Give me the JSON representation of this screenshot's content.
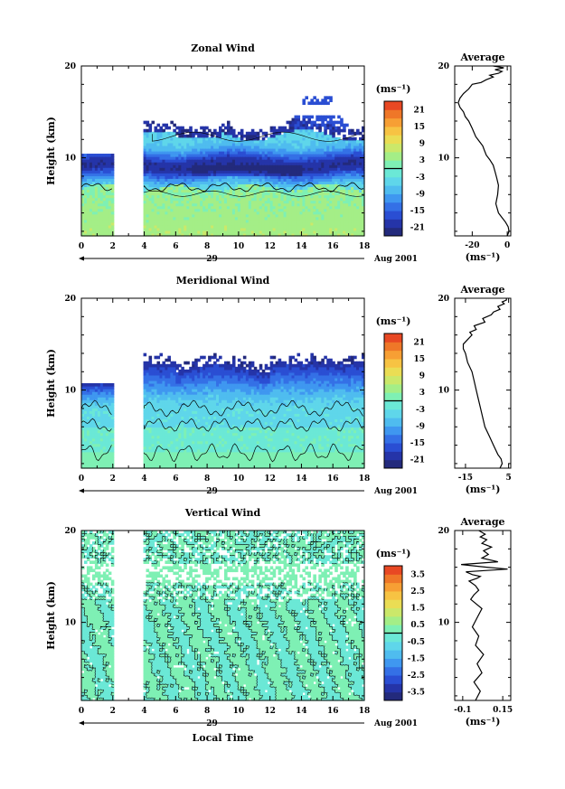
{
  "chart_data": [
    {
      "type": "heatmap",
      "title": "Zonal Wind",
      "ylabel": "Height (km)",
      "xlim": [
        0,
        18
      ],
      "ylim": [
        1.5,
        20
      ],
      "xticks": [
        0,
        2,
        4,
        6,
        8,
        10,
        12,
        14,
        16,
        18
      ],
      "yticks": [
        10,
        20
      ],
      "day_label": "29",
      "date_label": "Aug 2001",
      "colorbar": {
        "unit": "(ms⁻¹)",
        "min": -24,
        "max": 24,
        "ticks": [
          -21,
          -15,
          -9,
          -3,
          3,
          9,
          15,
          21
        ],
        "colors": [
          "#232a7c",
          "#2534a8",
          "#2a4ed3",
          "#3470e6",
          "#3f97f0",
          "#4fbcef",
          "#5fd6ea",
          "#6be8d6",
          "#7ef0b4",
          "#a4ee87",
          "#cbe86a",
          "#eadd54",
          "#f7c343",
          "#f79f34",
          "#ef7728",
          "#e84823"
        ]
      },
      "missing_x": [
        [
          2,
          4
        ]
      ],
      "features": {
        "zero_height_km": 6.8,
        "jet_height_km": 9.2,
        "jet_max_ms": -21,
        "top_km": 13
      }
    },
    {
      "type": "heatmap",
      "title": "Meridional Wind",
      "ylabel": "Height (km)",
      "xlim": [
        0,
        18
      ],
      "ylim": [
        1.5,
        20
      ],
      "xticks": [
        0,
        2,
        4,
        6,
        8,
        10,
        12,
        14,
        16,
        18
      ],
      "yticks": [
        10,
        20
      ],
      "day_label": "29",
      "date_label": "Aug 2001",
      "colorbar": {
        "unit": "(ms⁻¹)",
        "min": -24,
        "max": 24,
        "ticks": [
          -21,
          -15,
          -9,
          -3,
          3,
          9,
          15,
          21
        ],
        "colors": [
          "#232a7c",
          "#2534a8",
          "#2a4ed3",
          "#3470e6",
          "#3f97f0",
          "#4fbcef",
          "#5fd6ea",
          "#6be8d6",
          "#7ef0b4",
          "#a4ee87",
          "#cbe86a",
          "#eadd54",
          "#f7c343",
          "#f79f34",
          "#ef7728",
          "#e84823"
        ]
      },
      "missing_x": [
        [
          2,
          4
        ]
      ],
      "features": {
        "jet_height_km": 11.5,
        "jet_max_ms": -21,
        "top_km": 13
      }
    },
    {
      "type": "heatmap",
      "title": "Vertical Wind",
      "ylabel": "Height (km)",
      "xlabel": "Local Time",
      "xlim": [
        0,
        18
      ],
      "ylim": [
        1.5,
        20
      ],
      "xticks": [
        0,
        2,
        4,
        6,
        8,
        10,
        12,
        14,
        16,
        18
      ],
      "yticks": [
        10,
        20
      ],
      "day_label": "29",
      "date_label": "Aug 2001",
      "colorbar": {
        "unit": "(ms⁻¹)",
        "min": -4,
        "max": 4,
        "ticks": [
          -3.5,
          -2.5,
          -1.5,
          -0.5,
          0.5,
          1.5,
          2.5,
          3.5
        ],
        "colors": [
          "#232a7c",
          "#2534a8",
          "#2a4ed3",
          "#3470e6",
          "#3f97f0",
          "#4fbcef",
          "#5fd6ea",
          "#6be8d6",
          "#7ef0b4",
          "#a4ee87",
          "#cbe86a",
          "#eadd54",
          "#f7c343",
          "#f79f34",
          "#ef7728",
          "#e84823"
        ]
      },
      "missing_x": [
        [
          2,
          4
        ]
      ]
    },
    {
      "type": "line",
      "title": "Average",
      "xlabel": "(ms⁻¹)",
      "xlim": [
        -30,
        2
      ],
      "ylim": [
        1.5,
        20
      ],
      "xticks": [
        -20,
        0
      ],
      "yticks": [
        10,
        20
      ],
      "series": [
        {
          "x": [
            0,
            1,
            0.5,
            -1,
            -3,
            -5,
            -6.5,
            -5.5,
            -5,
            -6,
            -7,
            -8,
            -10,
            -12,
            -13,
            -14,
            -16,
            -18,
            -20,
            -22,
            -24,
            -25,
            -27,
            -28,
            -27,
            -25,
            -22,
            -20,
            -15,
            -12,
            -8,
            -10,
            -5,
            -3,
            -7,
            -2,
            -8
          ],
          "y": [
            1.5,
            2,
            2.5,
            3,
            3.5,
            4,
            5,
            6,
            7,
            7.8,
            8.5,
            9.2,
            9.8,
            10.3,
            10.8,
            11.3,
            11.8,
            12.3,
            13.2,
            14,
            14.5,
            15,
            15.5,
            16,
            16.5,
            17,
            17.5,
            18,
            18.2,
            18.5,
            18.8,
            19,
            19.2,
            19.4,
            19.6,
            19.8,
            20
          ]
        }
      ]
    },
    {
      "type": "line",
      "title": "Average",
      "xlabel": "(ms⁻¹)",
      "xlim": [
        -20,
        6
      ],
      "ylim": [
        1.5,
        20
      ],
      "xticks": [
        -15,
        5
      ],
      "yticks": [
        10,
        20
      ],
      "series": [
        {
          "x": [
            1,
            2,
            1.5,
            0,
            -2,
            -4,
            -6,
            -7,
            -8,
            -9,
            -10,
            -11,
            -12,
            -14,
            -15,
            -16,
            -16,
            -14,
            -12,
            -13,
            -10,
            -11,
            -6,
            -7,
            -3,
            -2,
            1,
            0,
            3,
            2,
            4,
            4
          ],
          "y": [
            1.5,
            2,
            2.5,
            3,
            4,
            5,
            6,
            7,
            8,
            9,
            10,
            11,
            12,
            13,
            14,
            14.5,
            15,
            15.5,
            16,
            16.3,
            16.6,
            17,
            17.4,
            17.8,
            18.2,
            18.5,
            18.8,
            19.1,
            19.4,
            19.6,
            19.8,
            20
          ]
        }
      ]
    },
    {
      "type": "line",
      "title": "Average",
      "xlabel": "(ms⁻¹)",
      "xlim": [
        -0.15,
        0.2
      ],
      "ylim": [
        1.5,
        20
      ],
      "xticks": [
        -0.1,
        0.15
      ],
      "yticks": [
        10,
        20
      ],
      "series": [
        {
          "x": [
            -0.02,
            0.01,
            -0.03,
            0.02,
            -0.01,
            0.03,
            -0.02,
            0.0,
            -0.04,
            -0.01,
            0.02,
            -0.05,
            -0.03,
            0.0,
            -0.02,
            -0.06,
            -0.01,
            0.01,
            -0.04,
            -0.08,
            0.18,
            0.05,
            -0.11,
            0.12,
            0.02,
            0.06,
            0.03,
            0.08,
            0.02,
            0.05,
            0.01,
            0.04,
            0.0
          ],
          "y": [
            1.5,
            2.5,
            3.5,
            4.5,
            5.5,
            6.5,
            7.5,
            8.5,
            9.5,
            10.5,
            11.5,
            12.5,
            13,
            13.5,
            14,
            14.5,
            14.8,
            15,
            15.2,
            15.5,
            15.8,
            16,
            16.3,
            16.6,
            17,
            17.4,
            17.8,
            18.2,
            18.6,
            19,
            19.3,
            19.6,
            20
          ]
        }
      ]
    }
  ]
}
